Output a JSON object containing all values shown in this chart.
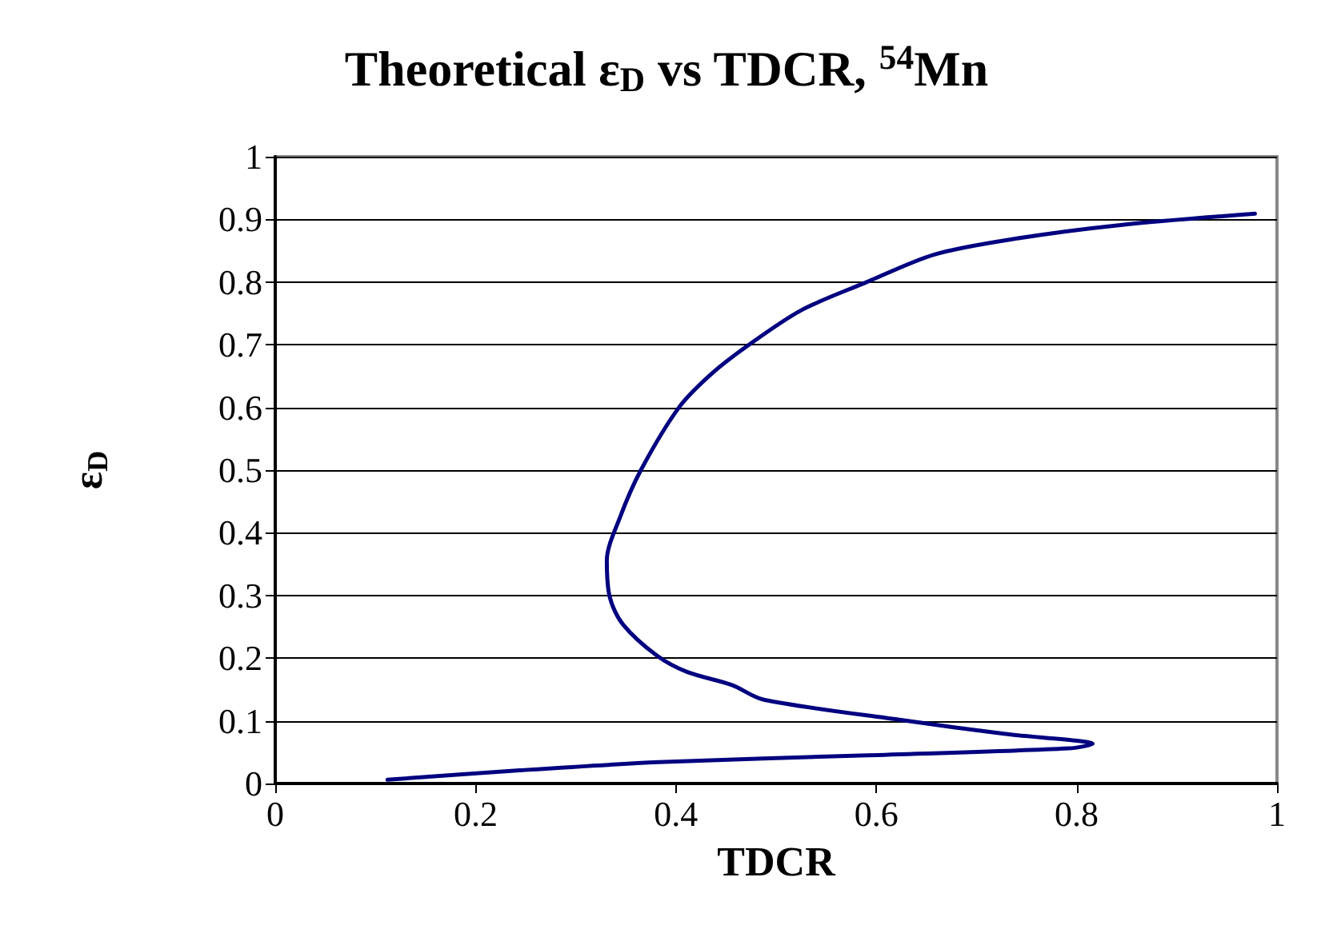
{
  "chart_data": {
    "type": "line",
    "title": "Theoretical ε$_{D}$ vs TDCR, $^{54}$Mn",
    "xlabel": "TDCR",
    "ylabel": "ε$_{D}$",
    "series": [
      {
        "color": "#000080",
        "x": [
          0.978,
          0.844,
          0.738,
          0.658,
          0.589,
          0.525,
          0.472,
          0.435,
          0.403,
          0.365,
          0.344,
          0.331,
          0.334,
          0.347,
          0.381,
          0.411,
          0.456,
          0.487,
          0.626,
          0.729,
          0.816,
          0.792,
          0.591,
          0.383,
          0.244,
          0.112
        ],
        "values": [
          0.909,
          0.891,
          0.869,
          0.844,
          0.799,
          0.755,
          0.699,
          0.653,
          0.6,
          0.5,
          0.424,
          0.356,
          0.297,
          0.254,
          0.204,
          0.178,
          0.157,
          0.134,
          0.101,
          0.079,
          0.063,
          0.056,
          0.045,
          0.034,
          0.021,
          0.006
        ]
      }
    ],
    "xlim": [
      0,
      1
    ],
    "xticks": [
      0,
      0.2,
      0.4,
      0.6,
      0.8,
      1
    ],
    "ylim": [
      0,
      1
    ],
    "yticks": [
      0,
      0.1,
      0.2,
      0.3,
      0.4,
      0.5,
      0.6,
      0.7,
      0.8,
      0.9,
      1
    ],
    "grid": "y",
    "marker": "none",
    "line_style": "solid"
  }
}
